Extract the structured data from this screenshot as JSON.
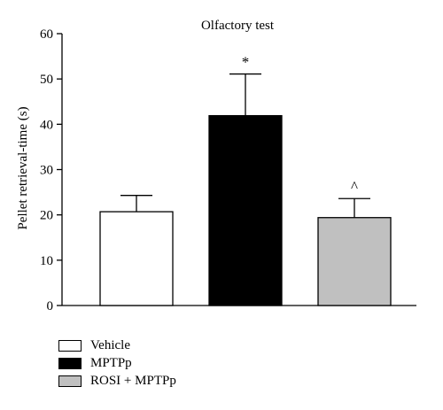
{
  "chart_data": {
    "type": "bar",
    "title": "Olfactory test",
    "ylabel": "Pellet retrieval-time (s)",
    "xlabel": "",
    "ylim": [
      0,
      60
    ],
    "yticks": [
      0,
      10,
      20,
      30,
      40,
      50,
      60
    ],
    "categories": [
      "Vehicle",
      "MPTPp",
      "ROSI + MPTPp"
    ],
    "values": [
      20.7,
      41.9,
      19.4
    ],
    "errors": [
      3.6,
      9.2,
      4.2
    ],
    "annotations": [
      "",
      "*",
      "^"
    ],
    "colors": [
      "#ffffff",
      "#000000",
      "#c0c0c0"
    ],
    "grid": false,
    "legend_position": "bottom-left"
  }
}
